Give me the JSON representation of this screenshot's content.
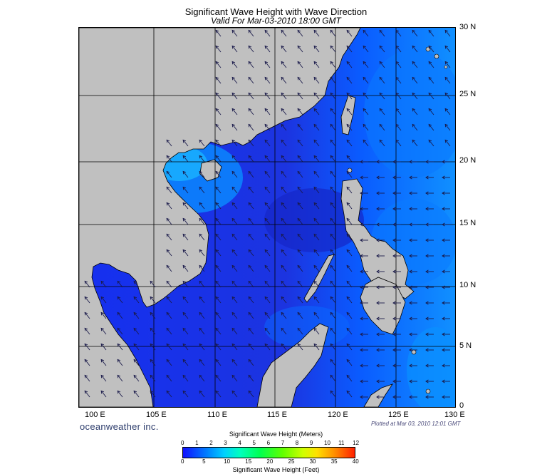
{
  "title": "Significant Wave Height with Wave Direction",
  "subtitle": "Valid For Mar-03-2010 18:00 GMT",
  "longitude_labels": [
    "100 E",
    "105 E",
    "110 E",
    "115 E",
    "120 E",
    "125 E",
    "130 E"
  ],
  "latitude_labels": [
    "30 N",
    "25 N",
    "20 N",
    "15 N",
    "10 N",
    "5 N",
    "0"
  ],
  "brand": "oceanweather inc.",
  "plotted_note": "Plotted at Mar 03, 2010 12:01 GMT",
  "legend": {
    "meters_title": "Significant Wave Height (Meters)",
    "feet_title": "Significant Wave Height (Feet)",
    "meters_ticks": [
      "0",
      "1",
      "2",
      "3",
      "4",
      "5",
      "6",
      "7",
      "8",
      "9",
      "10",
      "11",
      "12"
    ],
    "feet_ticks": [
      "0",
      "5",
      "10",
      "15",
      "20",
      "25",
      "30",
      "35",
      "40"
    ]
  },
  "colors": {
    "land": "#c0c0c0",
    "sea_low": "#1a1aff",
    "sea_mid": "#0070ff",
    "sea_high": "#00c8ff",
    "arrow": "#1a1a4a"
  }
}
